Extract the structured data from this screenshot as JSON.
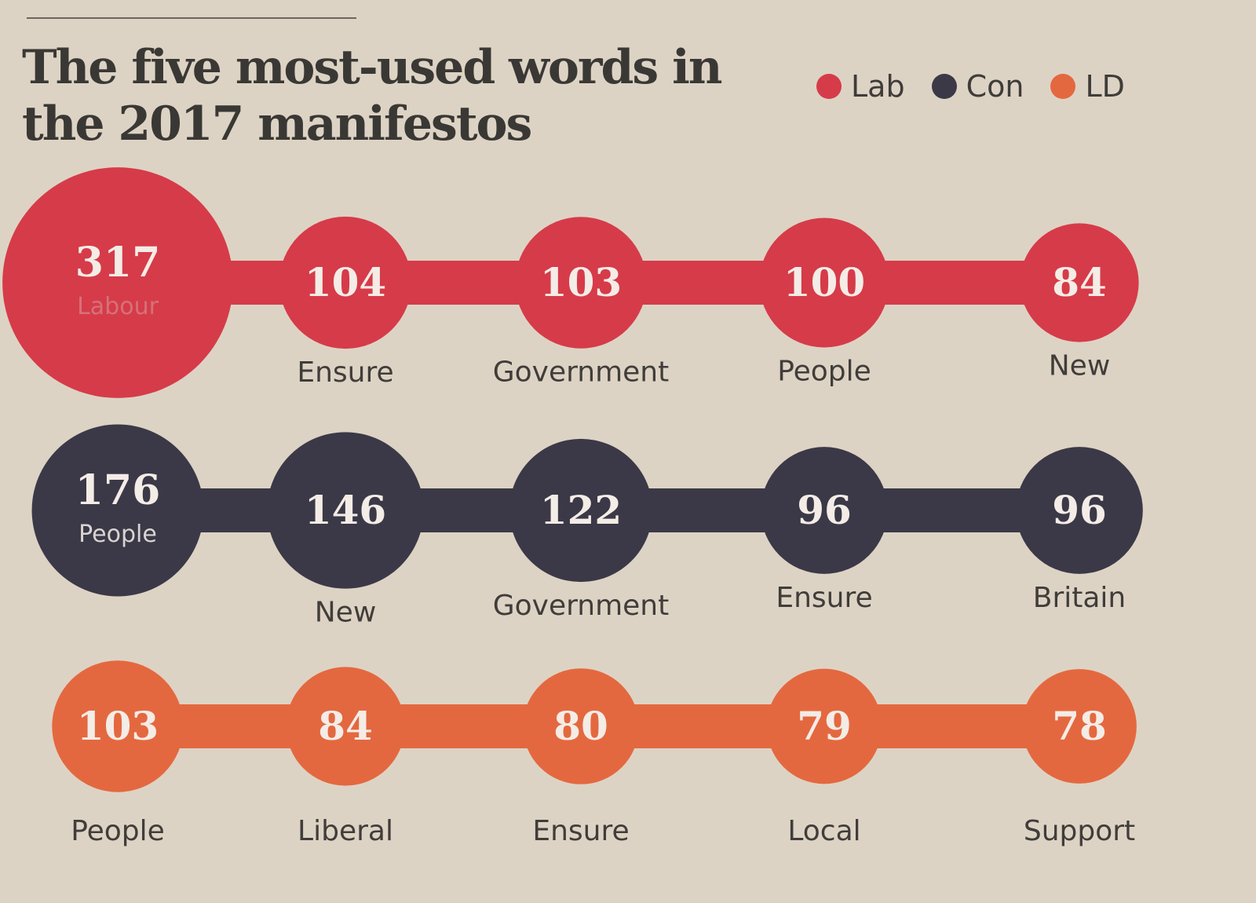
{
  "chart_data": {
    "type": "bubble-row",
    "title": "The five most-used words in the 2017 manifestos",
    "legend": [
      {
        "name": "Lab",
        "color": "#d63b49"
      },
      {
        "name": "Con",
        "color": "#3b3947"
      },
      {
        "name": "LD",
        "color": "#e4683f"
      }
    ],
    "series": [
      {
        "name": "Lab",
        "color": "#d63b49",
        "points": [
          {
            "word": "Labour",
            "value": 317
          },
          {
            "word": "Ensure",
            "value": 104
          },
          {
            "word": "Government",
            "value": 103
          },
          {
            "word": "People",
            "value": 100
          },
          {
            "word": "New",
            "value": 84
          }
        ]
      },
      {
        "name": "Con",
        "color": "#3b3947",
        "points": [
          {
            "word": "People",
            "value": 176
          },
          {
            "word": "New",
            "value": 146
          },
          {
            "word": "Government",
            "value": 122
          },
          {
            "word": "Ensure",
            "value": 96
          },
          {
            "word": "Britain",
            "value": 96
          }
        ]
      },
      {
        "name": "LD",
        "color": "#e4683f",
        "points": [
          {
            "word": "People",
            "value": 103
          },
          {
            "word": "Liberal",
            "value": 84
          },
          {
            "word": "Ensure",
            "value": 80
          },
          {
            "word": "Local",
            "value": 79
          },
          {
            "word": "Support",
            "value": 78
          }
        ]
      }
    ]
  }
}
